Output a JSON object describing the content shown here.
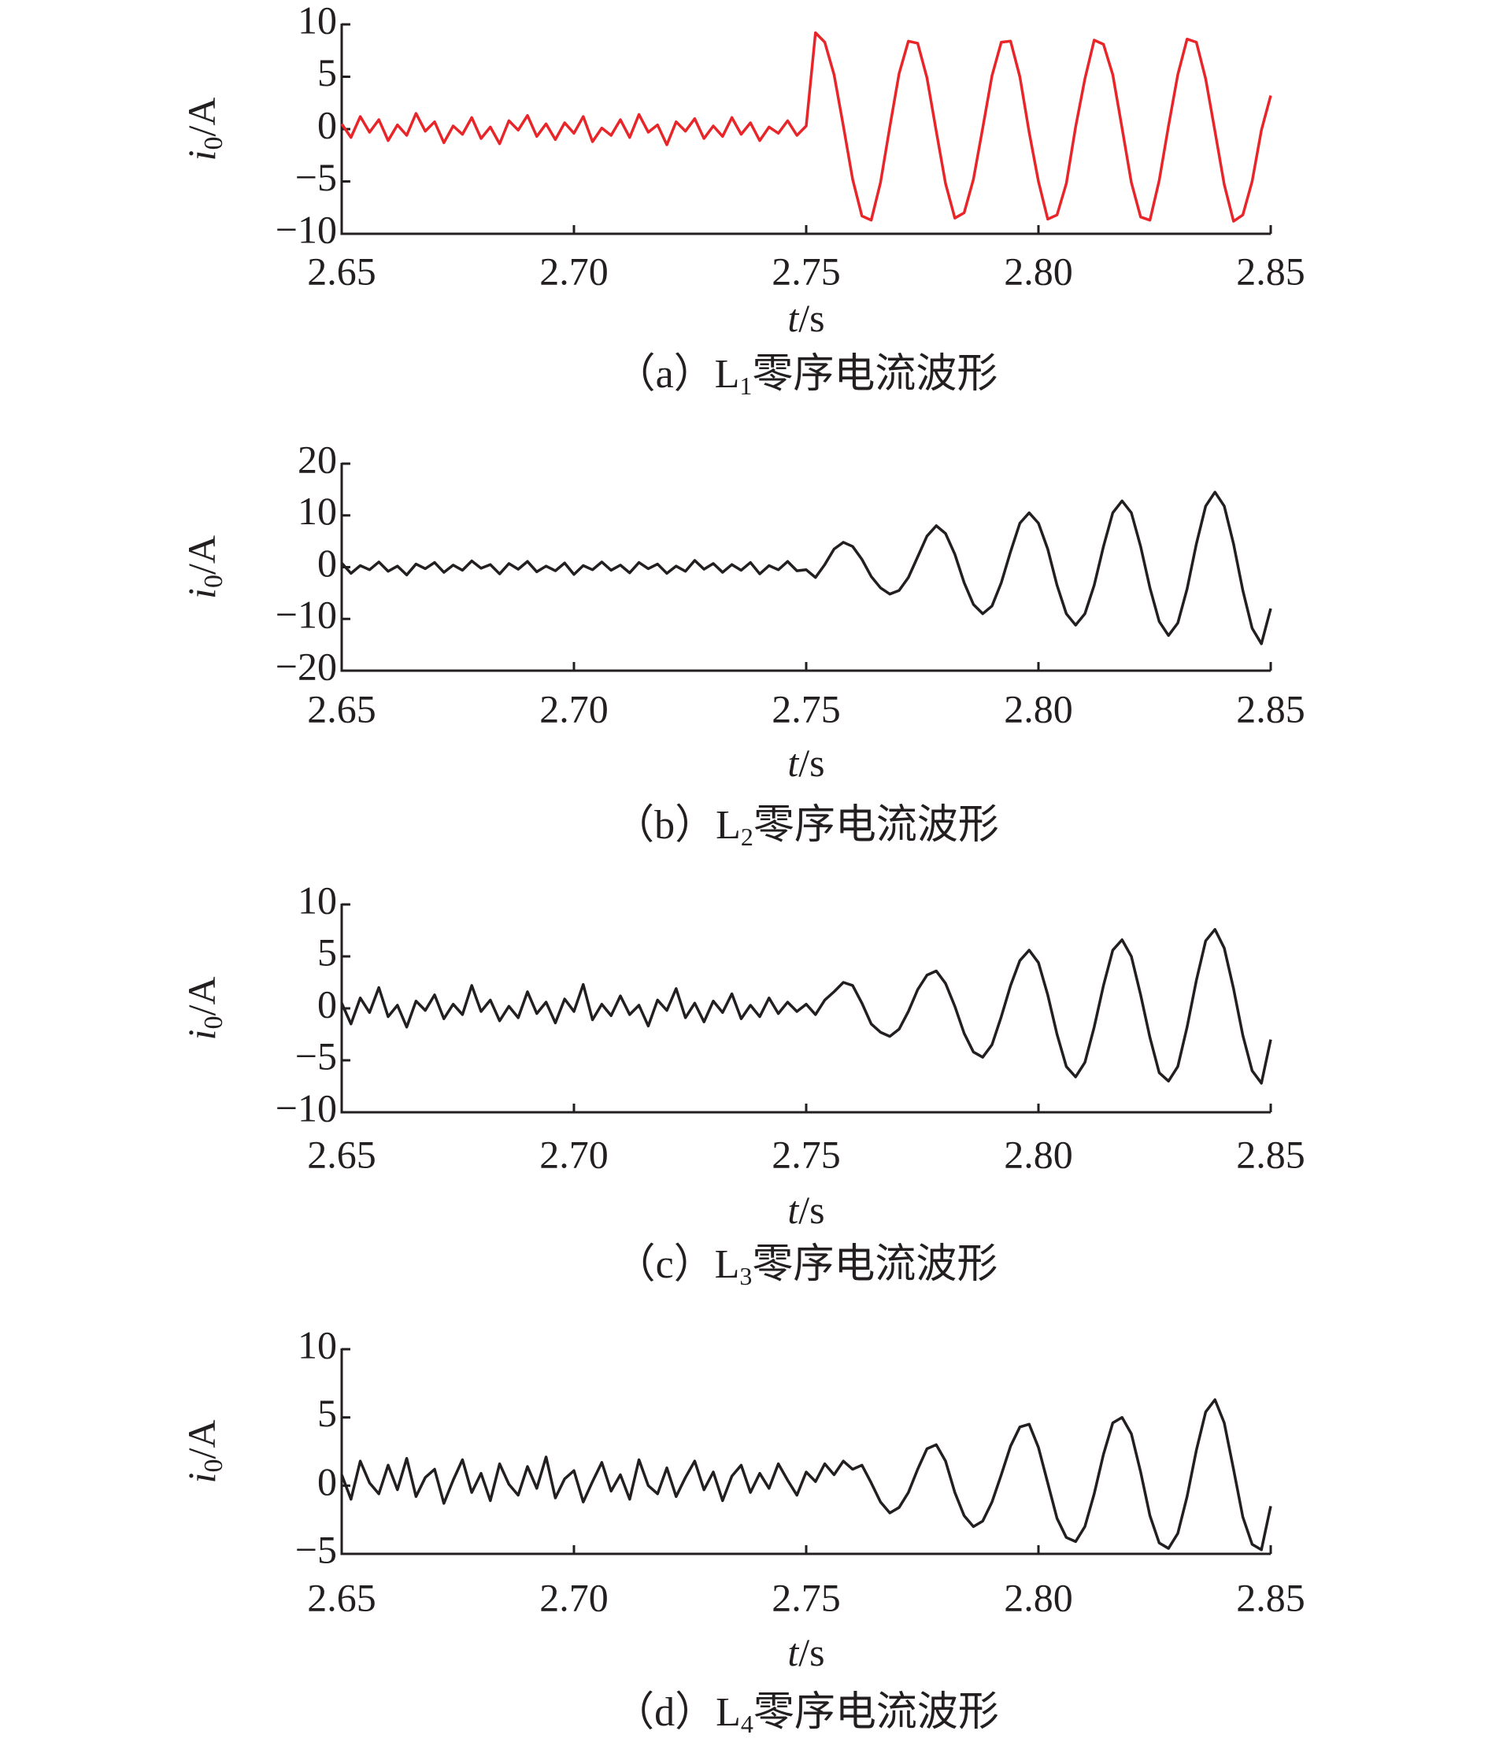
{
  "chart_data": [
    {
      "type": "line",
      "color": "#e8262a",
      "x": [
        2.65,
        2.652,
        2.654,
        2.656,
        2.658,
        2.66,
        2.662,
        2.664,
        2.666,
        2.668,
        2.67,
        2.672,
        2.674,
        2.676,
        2.678,
        2.68,
        2.682,
        2.684,
        2.686,
        2.688,
        2.69,
        2.692,
        2.694,
        2.696,
        2.698,
        2.7,
        2.702,
        2.704,
        2.706,
        2.708,
        2.71,
        2.712,
        2.714,
        2.716,
        2.718,
        2.72,
        2.722,
        2.724,
        2.726,
        2.728,
        2.73,
        2.732,
        2.734,
        2.736,
        2.738,
        2.74,
        2.742,
        2.744,
        2.746,
        2.748,
        2.75,
        2.752,
        2.754,
        2.756,
        2.758,
        2.76,
        2.762,
        2.764,
        2.766,
        2.768,
        2.77,
        2.772,
        2.774,
        2.776,
        2.778,
        2.78,
        2.782,
        2.784,
        2.786,
        2.788,
        2.79,
        2.792,
        2.794,
        2.796,
        2.798,
        2.8,
        2.802,
        2.804,
        2.806,
        2.808,
        2.81,
        2.812,
        2.814,
        2.816,
        2.818,
        2.82,
        2.822,
        2.824,
        2.826,
        2.828,
        2.83,
        2.832,
        2.834,
        2.836,
        2.838,
        2.84,
        2.842,
        2.844,
        2.846,
        2.848,
        2.85
      ],
      "values": [
        0.5,
        -0.8,
        1.2,
        -0.3,
        0.9,
        -1.1,
        0.4,
        -0.6,
        1.5,
        -0.2,
        0.7,
        -1.3,
        0.3,
        -0.5,
        1.1,
        -0.9,
        0.2,
        -1.4,
        0.8,
        -0.1,
        1.3,
        -0.7,
        0.5,
        -1.0,
        0.6,
        -0.4,
        1.2,
        -1.2,
        0.1,
        -0.6,
        0.9,
        -0.8,
        1.4,
        -0.3,
        0.4,
        -1.5,
        0.7,
        -0.2,
        1.0,
        -0.9,
        0.3,
        -0.7,
        1.1,
        -0.5,
        0.6,
        -1.1,
        0.2,
        -0.4,
        0.8,
        -0.6,
        0.3,
        9.2,
        8.3,
        5.2,
        0.3,
        -4.8,
        -8.3,
        -8.7,
        -5.1,
        0.2,
        5.3,
        8.4,
        8.2,
        4.9,
        -0.2,
        -5.2,
        -8.5,
        -8.0,
        -4.8,
        0.1,
        5.1,
        8.3,
        8.4,
        5.0,
        -0.3,
        -5.0,
        -8.6,
        -8.2,
        -5.2,
        0.2,
        4.8,
        8.5,
        8.1,
        5.2,
        0.1,
        -5.1,
        -8.4,
        -8.7,
        -4.9,
        0.3,
        5.2,
        8.6,
        8.3,
        4.8,
        -0.2,
        -5.3,
        -8.8,
        -8.2,
        -5.0,
        -0.1,
        3.2
      ],
      "xlim": [
        2.65,
        2.85
      ],
      "xticks": [
        2.65,
        {
          "value": 2.7,
          "label": "2.70"
        },
        2.75,
        {
          "value": 2.8,
          "label": "2.80"
        },
        2.85
      ],
      "ylim": [
        -10,
        10
      ],
      "yticks": [
        {
          "value": -10,
          "label": "−10"
        },
        {
          "value": -5,
          "label": "−5"
        },
        0,
        5,
        10
      ],
      "y_label": {
        "var": "i",
        "sub": "0",
        "unit": "/A"
      },
      "x_label": {
        "var": "t",
        "unit": "/s"
      },
      "caption": {
        "pre": "（a）L",
        "sub": "1",
        "post": "零序电流波形"
      }
    },
    {
      "type": "line",
      "color": "#231f20",
      "x": [
        2.65,
        2.652,
        2.654,
        2.656,
        2.658,
        2.66,
        2.662,
        2.664,
        2.666,
        2.668,
        2.67,
        2.672,
        2.674,
        2.676,
        2.678,
        2.68,
        2.682,
        2.684,
        2.686,
        2.688,
        2.69,
        2.692,
        2.694,
        2.696,
        2.698,
        2.7,
        2.702,
        2.704,
        2.706,
        2.708,
        2.71,
        2.712,
        2.714,
        2.716,
        2.718,
        2.72,
        2.722,
        2.724,
        2.726,
        2.728,
        2.73,
        2.732,
        2.734,
        2.736,
        2.738,
        2.74,
        2.742,
        2.744,
        2.746,
        2.748,
        2.75,
        2.752,
        2.754,
        2.756,
        2.758,
        2.76,
        2.762,
        2.764,
        2.766,
        2.768,
        2.77,
        2.772,
        2.774,
        2.776,
        2.778,
        2.78,
        2.782,
        2.784,
        2.786,
        2.788,
        2.79,
        2.792,
        2.794,
        2.796,
        2.798,
        2.8,
        2.802,
        2.804,
        2.806,
        2.808,
        2.81,
        2.812,
        2.814,
        2.816,
        2.818,
        2.82,
        2.822,
        2.824,
        2.826,
        2.828,
        2.83,
        2.832,
        2.834,
        2.836,
        2.838,
        2.84,
        2.842,
        2.844,
        2.846,
        2.848,
        2.85
      ],
      "values": [
        0.8,
        -1.2,
        0.3,
        -0.5,
        1.0,
        -0.8,
        0.2,
        -1.5,
        0.6,
        -0.3,
        0.9,
        -1.0,
        0.4,
        -0.6,
        1.2,
        -0.2,
        0.5,
        -1.3,
        0.7,
        -0.4,
        1.1,
        -0.9,
        0.2,
        -0.7,
        0.8,
        -1.4,
        0.3,
        -0.5,
        1.0,
        -0.6,
        0.4,
        -1.1,
        0.9,
        -0.3,
        0.6,
        -1.2,
        0.2,
        -0.8,
        1.3,
        -0.4,
        0.7,
        -1.0,
        0.5,
        -0.6,
        0.9,
        -1.3,
        0.3,
        -0.5,
        1.1,
        -0.7,
        -0.5,
        -2.0,
        0.5,
        3.5,
        4.8,
        4.0,
        1.5,
        -1.8,
        -4.0,
        -5.2,
        -4.5,
        -2.0,
        2.0,
        6.0,
        8.0,
        6.5,
        2.5,
        -3.0,
        -7.2,
        -9.0,
        -7.5,
        -3.0,
        3.0,
        8.5,
        10.5,
        8.5,
        3.5,
        -3.5,
        -9.0,
        -11.2,
        -9.0,
        -3.5,
        4.0,
        10.5,
        12.8,
        10.5,
        4.0,
        -4.0,
        -10.5,
        -13.2,
        -10.8,
        -4.2,
        4.5,
        11.8,
        14.5,
        11.8,
        4.5,
        -4.5,
        -11.8,
        -14.8,
        -8.0
      ],
      "xlim": [
        2.65,
        2.85
      ],
      "xticks": [
        2.65,
        {
          "value": 2.7,
          "label": "2.70"
        },
        2.75,
        {
          "value": 2.8,
          "label": "2.80"
        },
        2.85
      ],
      "ylim": [
        -20,
        20
      ],
      "yticks": [
        {
          "value": -20,
          "label": "−20"
        },
        {
          "value": -10,
          "label": "−10"
        },
        0,
        10,
        20
      ],
      "y_label": {
        "var": "i",
        "sub": "0",
        "unit": "/A"
      },
      "x_label": {
        "var": "t",
        "unit": "/s"
      },
      "caption": {
        "pre": "（b）L",
        "sub": "2",
        "post": "零序电流波形"
      }
    },
    {
      "type": "line",
      "color": "#231f20",
      "x": [
        2.65,
        2.652,
        2.654,
        2.656,
        2.658,
        2.66,
        2.662,
        2.664,
        2.666,
        2.668,
        2.67,
        2.672,
        2.674,
        2.676,
        2.678,
        2.68,
        2.682,
        2.684,
        2.686,
        2.688,
        2.69,
        2.692,
        2.694,
        2.696,
        2.698,
        2.7,
        2.702,
        2.704,
        2.706,
        2.708,
        2.71,
        2.712,
        2.714,
        2.716,
        2.718,
        2.72,
        2.722,
        2.724,
        2.726,
        2.728,
        2.73,
        2.732,
        2.734,
        2.736,
        2.738,
        2.74,
        2.742,
        2.744,
        2.746,
        2.748,
        2.75,
        2.752,
        2.754,
        2.756,
        2.758,
        2.76,
        2.762,
        2.764,
        2.766,
        2.768,
        2.77,
        2.772,
        2.774,
        2.776,
        2.778,
        2.78,
        2.782,
        2.784,
        2.786,
        2.788,
        2.79,
        2.792,
        2.794,
        2.796,
        2.798,
        2.8,
        2.802,
        2.804,
        2.806,
        2.808,
        2.81,
        2.812,
        2.814,
        2.816,
        2.818,
        2.82,
        2.822,
        2.824,
        2.826,
        2.828,
        2.83,
        2.832,
        2.834,
        2.836,
        2.838,
        2.84,
        2.842,
        2.844,
        2.846,
        2.848,
        2.85
      ],
      "values": [
        0.5,
        -1.5,
        1.0,
        -0.4,
        2.0,
        -0.8,
        0.3,
        -1.8,
        0.7,
        -0.2,
        1.3,
        -1.0,
        0.4,
        -0.6,
        2.2,
        -0.3,
        0.8,
        -1.2,
        0.2,
        -0.9,
        1.6,
        -0.5,
        0.6,
        -1.4,
        0.9,
        -0.3,
        2.3,
        -1.1,
        0.4,
        -0.7,
        1.2,
        -0.6,
        0.3,
        -1.7,
        0.8,
        -0.2,
        1.9,
        -0.9,
        0.5,
        -1.3,
        0.7,
        -0.4,
        1.4,
        -1.0,
        0.3,
        -0.8,
        1.0,
        -0.5,
        0.6,
        -0.3,
        0.4,
        -0.6,
        0.8,
        1.6,
        2.5,
        2.2,
        0.5,
        -1.5,
        -2.3,
        -2.7,
        -2.0,
        -0.3,
        1.8,
        3.2,
        3.6,
        2.4,
        0.2,
        -2.4,
        -4.2,
        -4.7,
        -3.5,
        -0.8,
        2.2,
        4.6,
        5.6,
        4.4,
        1.3,
        -2.5,
        -5.6,
        -6.6,
        -5.2,
        -1.8,
        2.2,
        5.6,
        6.6,
        5.0,
        1.3,
        -2.8,
        -6.2,
        -7.0,
        -5.6,
        -1.8,
        2.7,
        6.5,
        7.6,
        5.8,
        1.9,
        -2.6,
        -6.0,
        -7.2,
        -3.0
      ],
      "xlim": [
        2.65,
        2.85
      ],
      "xticks": [
        2.65,
        {
          "value": 2.7,
          "label": "2.70"
        },
        2.75,
        {
          "value": 2.8,
          "label": "2.80"
        },
        2.85
      ],
      "ylim": [
        -10,
        10
      ],
      "yticks": [
        {
          "value": -10,
          "label": "−10"
        },
        {
          "value": -5,
          "label": "−5"
        },
        0,
        5,
        10
      ],
      "y_label": {
        "var": "i",
        "sub": "0",
        "unit": "/A"
      },
      "x_label": {
        "var": "t",
        "unit": "/s"
      },
      "caption": {
        "pre": "（c）L",
        "sub": "3",
        "post": "零序电流波形"
      }
    },
    {
      "type": "line",
      "color": "#231f20",
      "x": [
        2.65,
        2.652,
        2.654,
        2.656,
        2.658,
        2.66,
        2.662,
        2.664,
        2.666,
        2.668,
        2.67,
        2.672,
        2.674,
        2.676,
        2.678,
        2.68,
        2.682,
        2.684,
        2.686,
        2.688,
        2.69,
        2.692,
        2.694,
        2.696,
        2.698,
        2.7,
        2.702,
        2.704,
        2.706,
        2.708,
        2.71,
        2.712,
        2.714,
        2.716,
        2.718,
        2.72,
        2.722,
        2.724,
        2.726,
        2.728,
        2.73,
        2.732,
        2.734,
        2.736,
        2.738,
        2.74,
        2.742,
        2.744,
        2.746,
        2.748,
        2.75,
        2.752,
        2.754,
        2.756,
        2.758,
        2.76,
        2.762,
        2.764,
        2.766,
        2.768,
        2.77,
        2.772,
        2.774,
        2.776,
        2.778,
        2.78,
        2.782,
        2.784,
        2.786,
        2.788,
        2.79,
        2.792,
        2.794,
        2.796,
        2.798,
        2.8,
        2.802,
        2.804,
        2.806,
        2.808,
        2.81,
        2.812,
        2.814,
        2.816,
        2.818,
        2.82,
        2.822,
        2.824,
        2.826,
        2.828,
        2.83,
        2.832,
        2.834,
        2.836,
        2.838,
        2.84,
        2.842,
        2.844,
        2.846,
        2.848,
        2.85
      ],
      "values": [
        0.8,
        -1.0,
        1.8,
        0.2,
        -0.6,
        1.5,
        -0.3,
        2.0,
        -0.8,
        0.6,
        1.2,
        -1.3,
        0.4,
        1.9,
        -0.5,
        0.9,
        -1.1,
        1.6,
        0.1,
        -0.7,
        1.4,
        -0.2,
        2.1,
        -0.9,
        0.5,
        1.1,
        -1.2,
        0.3,
        1.7,
        -0.4,
        0.8,
        -1.0,
        1.9,
        0.0,
        -0.6,
        1.3,
        -0.8,
        0.6,
        1.8,
        -0.3,
        1.0,
        -1.1,
        0.7,
        1.5,
        -0.5,
        0.9,
        -0.2,
        1.6,
        0.4,
        -0.7,
        1.0,
        0.3,
        1.6,
        0.8,
        1.8,
        1.2,
        1.5,
        0.2,
        -1.2,
        -2.0,
        -1.6,
        -0.5,
        1.2,
        2.7,
        3.0,
        1.8,
        -0.5,
        -2.2,
        -3.0,
        -2.6,
        -1.2,
        0.8,
        2.9,
        4.3,
        4.5,
        2.8,
        0.2,
        -2.4,
        -3.8,
        -4.1,
        -3.0,
        -0.6,
        2.3,
        4.6,
        5.0,
        3.8,
        1.0,
        -2.2,
        -4.2,
        -4.6,
        -3.5,
        -0.8,
        2.6,
        5.4,
        6.3,
        4.6,
        1.2,
        -2.3,
        -4.3,
        -4.7,
        -1.5
      ],
      "xlim": [
        2.65,
        2.85
      ],
      "xticks": [
        2.65,
        {
          "value": 2.7,
          "label": "2.70"
        },
        2.75,
        {
          "value": 2.8,
          "label": "2.80"
        },
        2.85
      ],
      "ylim": [
        -5,
        10
      ],
      "yticks": [
        {
          "value": -5,
          "label": "−5"
        },
        0,
        5,
        10
      ],
      "y_label": {
        "var": "i",
        "sub": "0",
        "unit": "/A"
      },
      "x_label": {
        "var": "t",
        "unit": "/s"
      },
      "caption": {
        "pre": "（d）L",
        "sub": "4",
        "post": "零序电流波形"
      }
    }
  ]
}
